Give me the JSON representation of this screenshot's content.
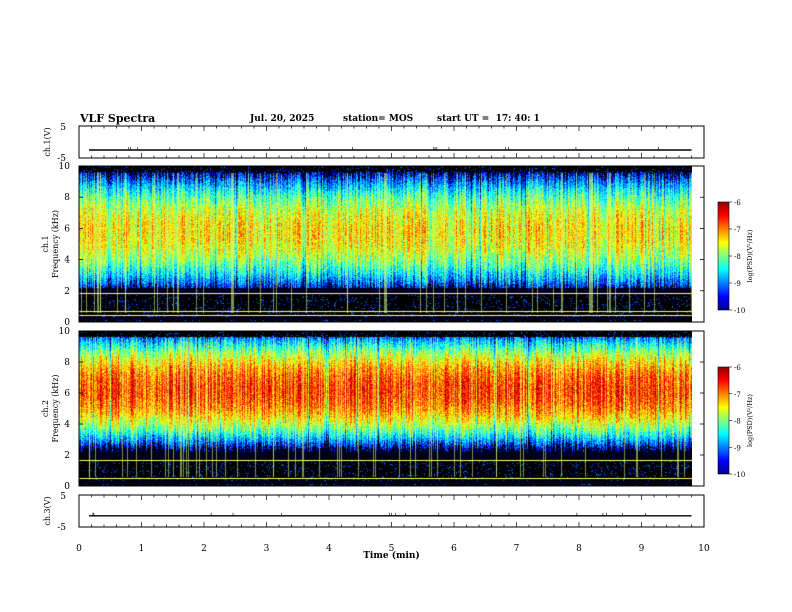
{
  "header": {
    "title": "VLF Spectra",
    "date": "Jul. 20, 2025",
    "station": "station= MOS",
    "start_ut": "start UT =  17: 40: 1"
  },
  "colors": {
    "jet": [
      "#00008f",
      "#0000ff",
      "#0080ff",
      "#00ffff",
      "#80ff80",
      "#ffff00",
      "#ff8000",
      "#ff0000",
      "#8f0000"
    ],
    "background_noise": "#000000",
    "tone_line": "#ffff55"
  },
  "chart_data": [
    {
      "type": "line",
      "name_label": "ch.1(V)",
      "ylabel": "ch.1(V)",
      "yticks": [
        "5",
        "-5"
      ],
      "ylim": [
        -5,
        5
      ],
      "level": -2.5,
      "xlim": [
        0,
        10
      ]
    },
    {
      "type": "heatmap",
      "channel": "ch.1",
      "ylabel": "Frequency (kHz)",
      "ylabel_prefix": "ch.1",
      "yticks": [
        "0",
        "2",
        "4",
        "6",
        "8",
        "10"
      ],
      "ylim": [
        0,
        10
      ],
      "xlim": [
        0,
        9.8
      ],
      "band_center_khz": 5.8,
      "band_halfwidth_khz": 3.2,
      "peak_log_psd": -7.4,
      "quiet_band_khz": [
        0.3,
        1.7
      ],
      "tone_lines_khz": [
        0.45,
        0.7,
        1.85
      ],
      "colorbar": {
        "label": "log(PSD)(V²/Hz)",
        "ticks": [
          "-6",
          "-7",
          "-8",
          "-9",
          "-10"
        ],
        "range": [
          -10,
          -6
        ]
      }
    },
    {
      "type": "heatmap",
      "channel": "ch.2",
      "ylabel": "Frequency (kHz)",
      "ylabel_prefix": "ch.2",
      "yticks": [
        "0",
        "2",
        "4",
        "6",
        "8",
        "10"
      ],
      "ylim": [
        0,
        10
      ],
      "xlim": [
        0,
        9.8
      ],
      "band_center_khz": 6.2,
      "band_halfwidth_khz": 2.8,
      "peak_log_psd": -6.7,
      "quiet_band_khz": [
        0.3,
        1.7
      ],
      "tone_lines_khz": [
        0.5,
        1.7
      ],
      "colorbar": {
        "label": "log(PSD)(V²/Hz)",
        "ticks": [
          "-6",
          "-7",
          "-8",
          "-9",
          "-10"
        ],
        "range": [
          -10,
          -6
        ]
      }
    },
    {
      "type": "line",
      "name_label": "ch.3(V)",
      "ylabel": "ch.3(V)",
      "yticks": [
        "5",
        "-5"
      ],
      "ylim": [
        -5,
        5
      ],
      "level": -1.5,
      "xlim": [
        0,
        10
      ]
    }
  ],
  "xaxis": {
    "label": "Time (min)",
    "ticks": [
      "0",
      "1",
      "2",
      "3",
      "4",
      "5",
      "6",
      "7",
      "8",
      "9",
      "10"
    ],
    "range": [
      0,
      10
    ]
  }
}
